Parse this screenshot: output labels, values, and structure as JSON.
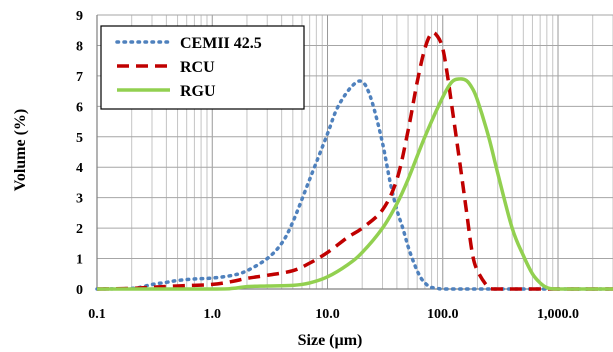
{
  "chart_data": {
    "type": "line",
    "xscale": "log",
    "xlim": [
      0.1,
      3000
    ],
    "ylim": [
      0,
      9
    ],
    "xlabel": "Size (µm)",
    "ylabel": "Volume (%)",
    "x_ticks": [
      0.1,
      1,
      10,
      100,
      1000
    ],
    "x_tick_labels": [
      "0.1",
      "1.0",
      "10.0",
      "100.0",
      "1,000.0"
    ],
    "y_ticks": [
      0,
      1,
      2,
      3,
      4,
      5,
      6,
      7,
      8,
      9
    ],
    "y_tick_labels": [
      "0",
      "1",
      "2",
      "3",
      "4",
      "5",
      "6",
      "7",
      "8",
      "9"
    ],
    "grid": "major and minor vertical, major horizontal",
    "legend_position": "top-left",
    "series": [
      {
        "name": "CEMII 42.5",
        "color": "#4f81bd",
        "style": "dotted",
        "x": [
          0.1,
          0.2,
          0.25,
          0.3,
          0.4,
          0.5,
          0.7,
          1.0,
          1.5,
          2.0,
          3.0,
          4.0,
          5.0,
          7.0,
          10,
          12,
          15,
          18,
          20,
          22,
          25,
          30,
          35,
          40,
          45,
          50,
          55,
          60,
          65,
          70,
          75,
          80,
          90,
          100,
          150,
          200,
          500,
          1000,
          3000
        ],
        "y": [
          0,
          0.02,
          0.08,
          0.15,
          0.22,
          0.28,
          0.33,
          0.36,
          0.45,
          0.6,
          1.0,
          1.5,
          2.2,
          3.6,
          5.1,
          5.9,
          6.5,
          6.8,
          6.8,
          6.6,
          6.0,
          4.8,
          3.5,
          2.6,
          2.0,
          1.4,
          0.95,
          0.6,
          0.35,
          0.2,
          0.1,
          0.05,
          0.02,
          0,
          0,
          0,
          0,
          0,
          0
        ]
      },
      {
        "name": "RCU",
        "color": "#c00000",
        "style": "dashed",
        "x": [
          0.1,
          0.2,
          0.3,
          0.5,
          1.0,
          1.5,
          2.0,
          3.0,
          5.0,
          7.0,
          10,
          15,
          20,
          30,
          40,
          50,
          60,
          70,
          80,
          90,
          100,
          110,
          120,
          140,
          160,
          180,
          200,
          250,
          300,
          1000,
          3000
        ],
        "y": [
          0,
          0.02,
          0.06,
          0.1,
          0.15,
          0.25,
          0.35,
          0.45,
          0.6,
          0.85,
          1.2,
          1.7,
          2.0,
          2.6,
          3.6,
          5.2,
          6.8,
          7.9,
          8.4,
          8.3,
          7.9,
          7.0,
          6.0,
          4.2,
          2.6,
          1.2,
          0.6,
          0.05,
          0,
          0,
          0
        ]
      },
      {
        "name": "RGU",
        "color": "#92d050",
        "style": "solid",
        "x": [
          0.1,
          1.0,
          1.5,
          2.0,
          3.0,
          5.0,
          7.0,
          10,
          15,
          20,
          30,
          40,
          50,
          70,
          100,
          120,
          140,
          160,
          180,
          200,
          250,
          300,
          400,
          500,
          600,
          700,
          800,
          1000,
          3000
        ],
        "y": [
          0,
          0,
          0.02,
          0.08,
          0.1,
          0.12,
          0.2,
          0.4,
          0.8,
          1.2,
          2.0,
          2.8,
          3.6,
          5.0,
          6.3,
          6.8,
          6.9,
          6.85,
          6.6,
          6.2,
          5.0,
          3.8,
          2.0,
          1.1,
          0.5,
          0.2,
          0.05,
          0,
          0
        ]
      }
    ]
  }
}
